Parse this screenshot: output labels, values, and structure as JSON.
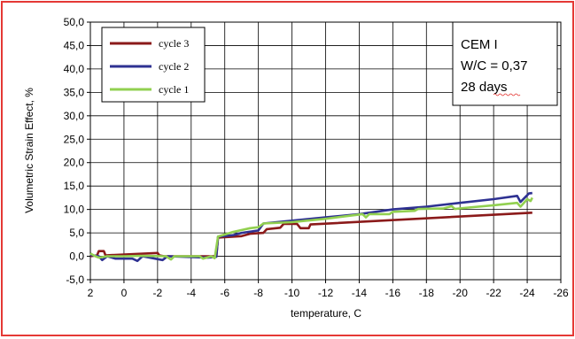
{
  "chart_data": {
    "type": "line",
    "title": "",
    "xlabel": "temperature, C",
    "ylabel": "Volumetric Strain Effect, %",
    "xlim": [
      2,
      -26
    ],
    "ylim": [
      -5,
      50
    ],
    "x_ticks": [
      "2",
      "0",
      "-2",
      "-4",
      "-6",
      "-8",
      "-10",
      "-12",
      "-14",
      "-16",
      "-18",
      "-20",
      "-22",
      "-24",
      "-26"
    ],
    "y_ticks": [
      "-5,0",
      "0,0",
      "5,0",
      "10,0",
      "15,0",
      "20,0",
      "25,0",
      "30,0",
      "35,0",
      "40,0",
      "45,0",
      "50,0"
    ],
    "grid": true,
    "legend_position": "top-left",
    "annotation_lines": [
      "CEM I",
      "W/C = 0,37",
      "28 days"
    ],
    "series": [
      {
        "name": "cycle 3",
        "color": "#8b1a1a",
        "points": [
          [
            2,
            0
          ],
          [
            1.6,
            0.2
          ],
          [
            1.5,
            1.1
          ],
          [
            1.2,
            1.1
          ],
          [
            1.1,
            0.2
          ],
          [
            -2,
            0.7
          ],
          [
            -2.1,
            0.2
          ],
          [
            -2.4,
            0
          ],
          [
            -5.5,
            0
          ],
          [
            -5.6,
            4
          ],
          [
            -7,
            4.3
          ],
          [
            -7.5,
            4.8
          ],
          [
            -8.3,
            5
          ],
          [
            -8.5,
            5.8
          ],
          [
            -9.3,
            6.1
          ],
          [
            -9.5,
            6.9
          ],
          [
            -10.3,
            6.9
          ],
          [
            -10.5,
            6
          ],
          [
            -11,
            6
          ],
          [
            -11.1,
            6.8
          ],
          [
            -24.3,
            9.3
          ]
        ]
      },
      {
        "name": "cycle 2",
        "color": "#2e3192",
        "points": [
          [
            2,
            0.3
          ],
          [
            1.5,
            0
          ],
          [
            1.3,
            -0.8
          ],
          [
            1,
            0
          ],
          [
            0.5,
            -0.5
          ],
          [
            -0.5,
            -0.5
          ],
          [
            -0.8,
            -1
          ],
          [
            -1.1,
            0
          ],
          [
            -2.3,
            -0.8
          ],
          [
            -2.6,
            0
          ],
          [
            -5,
            -0.3
          ],
          [
            -5.5,
            -0.1
          ],
          [
            -5.6,
            4.2
          ],
          [
            -6.5,
            4.5
          ],
          [
            -7,
            5
          ],
          [
            -8,
            5.5
          ],
          [
            -8.3,
            7
          ],
          [
            -10,
            7.6
          ],
          [
            -12,
            8.3
          ],
          [
            -14,
            9
          ],
          [
            -16,
            10
          ],
          [
            -18,
            10.6
          ],
          [
            -20,
            11.4
          ],
          [
            -22,
            12.2
          ],
          [
            -23.4,
            12.9
          ],
          [
            -23.6,
            11.6
          ],
          [
            -24.1,
            13.4
          ],
          [
            -24.3,
            13.5
          ]
        ]
      },
      {
        "name": "cycle 1",
        "color": "#92d050",
        "points": [
          [
            2,
            0.6
          ],
          [
            1.7,
            0
          ],
          [
            1.5,
            -0.3
          ],
          [
            1,
            0
          ],
          [
            0,
            0
          ],
          [
            -1,
            0.1
          ],
          [
            -2.5,
            0
          ],
          [
            -2.8,
            -0.7
          ],
          [
            -3,
            0
          ],
          [
            -4.5,
            0
          ],
          [
            -4.7,
            -0.5
          ],
          [
            -5.2,
            0
          ],
          [
            -5.4,
            -0.4
          ],
          [
            -5.6,
            4.2
          ],
          [
            -6.5,
            5.2
          ],
          [
            -7.5,
            6
          ],
          [
            -8,
            6.2
          ],
          [
            -8.3,
            7
          ],
          [
            -10,
            7.3
          ],
          [
            -12,
            8
          ],
          [
            -14.2,
            9
          ],
          [
            -14.4,
            8.3
          ],
          [
            -14.6,
            9
          ],
          [
            -15.8,
            9
          ],
          [
            -16,
            9.5
          ],
          [
            -17.3,
            9.7
          ],
          [
            -17.5,
            10.1
          ],
          [
            -19,
            10.2
          ],
          [
            -19.5,
            10.7
          ],
          [
            -19.7,
            10.1
          ],
          [
            -20.5,
            10.4
          ],
          [
            -22,
            10.9
          ],
          [
            -23.4,
            11.4
          ],
          [
            -23.6,
            10.6
          ],
          [
            -24,
            12.2
          ],
          [
            -24.2,
            11.8
          ],
          [
            -24.3,
            12.5
          ]
        ]
      }
    ]
  }
}
